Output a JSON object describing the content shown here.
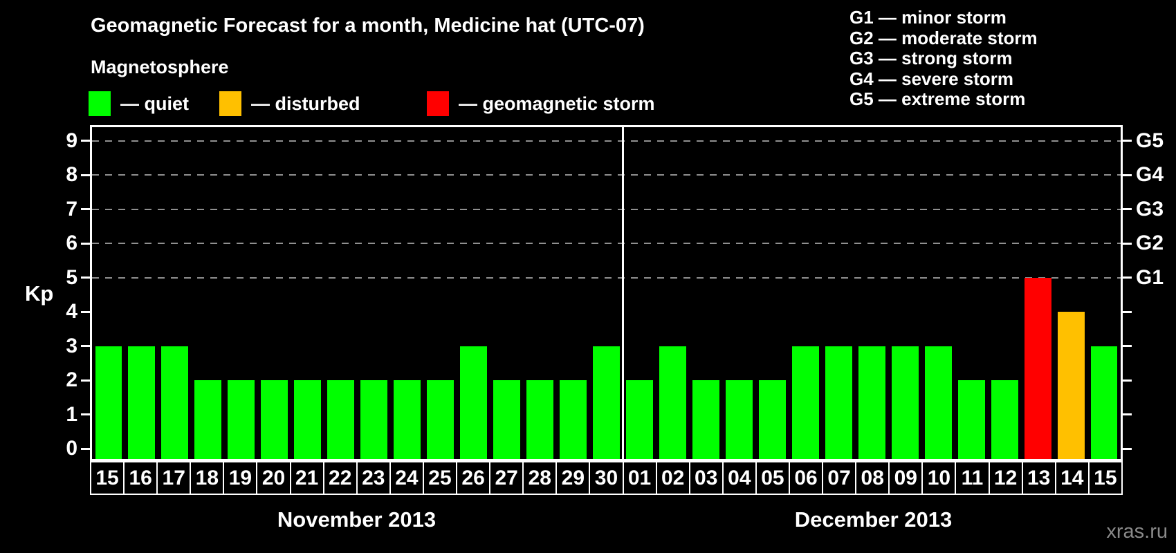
{
  "title": "Geomagnetic Forecast for a month, Medicine hat (UTC-07)",
  "legend": {
    "heading": "Magnetosphere",
    "items": [
      {
        "key": "quiet",
        "label": "— quiet",
        "color": "#00ff00"
      },
      {
        "key": "disturbed",
        "label": "— disturbed",
        "color": "#ffc000"
      },
      {
        "key": "storm",
        "label": "— geomagnetic storm",
        "color": "#ff0000"
      }
    ]
  },
  "g_legend": [
    "G1 — minor storm",
    "G2 — moderate storm",
    "G3 — strong storm",
    "G4 — severe storm",
    "G5 — extreme storm"
  ],
  "watermark": "xras.ru",
  "chart_data": {
    "type": "bar",
    "ylabel": "Kp",
    "ylim": [
      -0.3,
      9.4
    ],
    "y_ticks": [
      0,
      1,
      2,
      3,
      4,
      5,
      6,
      7,
      8,
      9
    ],
    "gridlines_at": [
      5,
      6,
      7,
      8,
      9
    ],
    "right_tick_labels": {
      "5": "G1",
      "6": "G2",
      "7": "G3",
      "8": "G4",
      "9": "G5"
    },
    "grid": "dashed, only at storm levels 5-9",
    "legend_position": "top",
    "months": [
      {
        "label": "November 2013",
        "days": [
          {
            "day": "15",
            "kp": 3,
            "status": "quiet"
          },
          {
            "day": "16",
            "kp": 3,
            "status": "quiet"
          },
          {
            "day": "17",
            "kp": 3,
            "status": "quiet"
          },
          {
            "day": "18",
            "kp": 2,
            "status": "quiet"
          },
          {
            "day": "19",
            "kp": 2,
            "status": "quiet"
          },
          {
            "day": "20",
            "kp": 2,
            "status": "quiet"
          },
          {
            "day": "21",
            "kp": 2,
            "status": "quiet"
          },
          {
            "day": "22",
            "kp": 2,
            "status": "quiet"
          },
          {
            "day": "23",
            "kp": 2,
            "status": "quiet"
          },
          {
            "day": "24",
            "kp": 2,
            "status": "quiet"
          },
          {
            "day": "25",
            "kp": 2,
            "status": "quiet"
          },
          {
            "day": "26",
            "kp": 3,
            "status": "quiet"
          },
          {
            "day": "27",
            "kp": 2,
            "status": "quiet"
          },
          {
            "day": "28",
            "kp": 2,
            "status": "quiet"
          },
          {
            "day": "29",
            "kp": 2,
            "status": "quiet"
          },
          {
            "day": "30",
            "kp": 3,
            "status": "quiet"
          }
        ]
      },
      {
        "label": "December 2013",
        "days": [
          {
            "day": "01",
            "kp": 2,
            "status": "quiet"
          },
          {
            "day": "02",
            "kp": 3,
            "status": "quiet"
          },
          {
            "day": "03",
            "kp": 2,
            "status": "quiet"
          },
          {
            "day": "04",
            "kp": 2,
            "status": "quiet"
          },
          {
            "day": "05",
            "kp": 2,
            "status": "quiet"
          },
          {
            "day": "06",
            "kp": 3,
            "status": "quiet"
          },
          {
            "day": "07",
            "kp": 3,
            "status": "quiet"
          },
          {
            "day": "08",
            "kp": 3,
            "status": "quiet"
          },
          {
            "day": "09",
            "kp": 3,
            "status": "quiet"
          },
          {
            "day": "10",
            "kp": 3,
            "status": "quiet"
          },
          {
            "day": "11",
            "kp": 2,
            "status": "quiet"
          },
          {
            "day": "12",
            "kp": 2,
            "status": "quiet"
          },
          {
            "day": "13",
            "kp": 5,
            "status": "storm"
          },
          {
            "day": "14",
            "kp": 4,
            "status": "disturbed"
          },
          {
            "day": "15",
            "kp": 3,
            "status": "quiet"
          }
        ]
      }
    ]
  }
}
